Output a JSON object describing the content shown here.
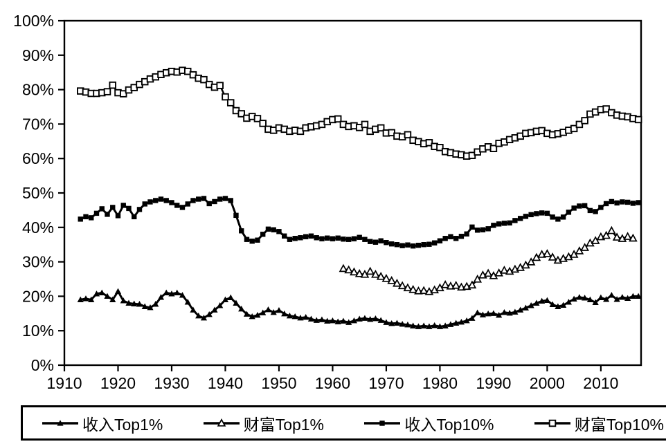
{
  "chart_data": {
    "type": "line",
    "title": "",
    "xlabel": "",
    "ylabel": "",
    "grid": "off",
    "legend_position": "bottom",
    "background_color": "#ffffff",
    "line_color": "#000000",
    "x_axis": {
      "min": 1910,
      "max": 2017.5,
      "ticks": [
        {
          "v": 1910,
          "label": "1910"
        },
        {
          "v": 1920,
          "label": "1920"
        },
        {
          "v": 1930,
          "label": "1930"
        },
        {
          "v": 1940,
          "label": "1940"
        },
        {
          "v": 1950,
          "label": "1950"
        },
        {
          "v": 1960,
          "label": "1960"
        },
        {
          "v": 1970,
          "label": "1970"
        },
        {
          "v": 1980,
          "label": "1980"
        },
        {
          "v": 1990,
          "label": "1990"
        },
        {
          "v": 2000,
          "label": "2000"
        },
        {
          "v": 2010,
          "label": "2010"
        }
      ]
    },
    "y_axis": {
      "min": 0,
      "max": 100,
      "ticks": [
        {
          "v": 0,
          "label": "0%"
        },
        {
          "v": 10,
          "label": "10%"
        },
        {
          "v": 20,
          "label": "20%"
        },
        {
          "v": 30,
          "label": "30%"
        },
        {
          "v": 40,
          "label": "40%"
        },
        {
          "v": 50,
          "label": "50%"
        },
        {
          "v": 60,
          "label": "60%"
        },
        {
          "v": 70,
          "label": "70%"
        },
        {
          "v": 80,
          "label": "80%"
        },
        {
          "v": 90,
          "label": "90%"
        },
        {
          "v": 100,
          "label": "100%"
        }
      ]
    },
    "series": [
      {
        "id": "income_top1",
        "name": "收入Top1%",
        "marker": "filled-triangle",
        "unit": "%",
        "start_year": 1913,
        "values": [
          19.0,
          19.3,
          19.0,
          20.7,
          21.0,
          20.0,
          19.0,
          21.4,
          18.7,
          18.0,
          17.8,
          17.7,
          17.0,
          16.7,
          17.7,
          19.7,
          21.0,
          20.7,
          21.0,
          20.3,
          18.3,
          16.0,
          14.3,
          13.7,
          14.7,
          16.0,
          17.3,
          19.0,
          19.6,
          18.0,
          16.3,
          14.8,
          14.1,
          14.5,
          15.2,
          16.1,
          15.3,
          15.9,
          14.9,
          14.3,
          14.1,
          13.7,
          13.9,
          13.4,
          13.0,
          13.2,
          12.8,
          12.9,
          12.6,
          12.8,
          12.4,
          12.9,
          13.4,
          13.6,
          13.3,
          13.5,
          13.0,
          12.4,
          12.1,
          12.2,
          11.9,
          11.7,
          11.4,
          11.2,
          11.4,
          11.2,
          11.5,
          11.2,
          11.4,
          11.8,
          12.2,
          12.5,
          12.9,
          13.6,
          15.2,
          14.6,
          14.9,
          15.0,
          14.5,
          15.3,
          15.1,
          15.4,
          16.0,
          16.6,
          17.3,
          18.0,
          18.6,
          18.8,
          17.6,
          17.0,
          17.4,
          18.3,
          19.2,
          19.7,
          19.5,
          19.0,
          18.2,
          19.6,
          19.1,
          20.3,
          19.1,
          19.7,
          19.4,
          20.0,
          20.0
        ]
      },
      {
        "id": "wealth_top1",
        "name": "财富Top1%",
        "marker": "open-triangle",
        "unit": "%",
        "start_year": 1962,
        "values": [
          28.0,
          27.6,
          27.0,
          26.5,
          26.3,
          27.2,
          26.3,
          25.7,
          25.1,
          24.5,
          23.7,
          23.0,
          22.4,
          21.9,
          21.5,
          21.6,
          21.3,
          21.8,
          22.4,
          23.3,
          22.9,
          23.1,
          22.6,
          22.8,
          23.2,
          24.9,
          26.1,
          26.6,
          25.9,
          26.7,
          27.5,
          27.2,
          27.8,
          28.3,
          29.0,
          29.9,
          31.2,
          32.1,
          32.3,
          31.3,
          30.4,
          30.9,
          31.4,
          32.1,
          33.1,
          34.1,
          35.4,
          36.1,
          37.2,
          37.6,
          39.0,
          37.1,
          36.7,
          37.3,
          36.8
        ]
      },
      {
        "id": "income_top10",
        "name": "收入Top10%",
        "marker": "filled-square",
        "unit": "%",
        "start_year": 1913,
        "values": [
          42.4,
          43.1,
          42.8,
          44.1,
          45.4,
          43.8,
          45.8,
          43.4,
          46.4,
          45.5,
          43.1,
          45.2,
          46.8,
          47.4,
          47.8,
          48.2,
          47.8,
          47.2,
          46.4,
          45.8,
          46.8,
          47.8,
          48.2,
          48.4,
          46.9,
          47.5,
          48.2,
          48.4,
          47.8,
          43.5,
          39.0,
          36.5,
          36.0,
          36.3,
          38.0,
          39.5,
          39.3,
          38.8,
          37.5,
          36.5,
          36.8,
          37.0,
          37.3,
          37.5,
          37.0,
          36.7,
          36.9,
          36.7,
          36.9,
          36.6,
          36.5,
          36.7,
          37.1,
          36.5,
          35.9,
          35.7,
          36.1,
          35.6,
          35.2,
          35.0,
          34.7,
          34.9,
          34.6,
          34.8,
          35.0,
          35.1,
          35.5,
          36.1,
          36.8,
          37.3,
          36.8,
          37.4,
          38.1,
          40.1,
          39.2,
          39.3,
          39.6,
          40.6,
          41.0,
          41.2,
          41.3,
          42.0,
          42.6,
          43.2,
          43.7,
          44.0,
          44.2,
          44.1,
          43.0,
          42.4,
          43.0,
          44.4,
          45.6,
          46.2,
          46.3,
          44.9,
          44.6,
          45.8,
          46.9,
          47.5,
          47.1,
          47.4,
          47.3,
          47.0,
          47.2
        ]
      },
      {
        "id": "wealth_top10",
        "name": "财富Top10%",
        "marker": "open-square",
        "unit": "%",
        "start_year": 1913,
        "values": [
          79.6,
          79.3,
          78.9,
          78.9,
          79.1,
          79.4,
          81.3,
          79.1,
          78.8,
          79.9,
          80.6,
          81.5,
          82.3,
          83.1,
          83.7,
          84.4,
          84.9,
          85.3,
          85.1,
          85.6,
          85.3,
          84.3,
          83.3,
          82.9,
          81.5,
          80.7,
          81.2,
          77.9,
          76.2,
          73.9,
          73.0,
          71.7,
          72.2,
          71.6,
          70.2,
          68.5,
          68.2,
          68.9,
          68.5,
          67.9,
          68.2,
          67.9,
          68.9,
          69.2,
          69.5,
          69.9,
          70.7,
          71.3,
          71.5,
          69.9,
          69.3,
          69.5,
          69.0,
          69.9,
          67.9,
          68.5,
          68.9,
          67.4,
          67.5,
          66.5,
          66.3,
          66.9,
          65.3,
          64.9,
          64.3,
          64.6,
          63.5,
          63.2,
          62.0,
          61.7,
          61.3,
          61.1,
          60.7,
          60.9,
          61.9,
          62.8,
          63.4,
          62.9,
          64.4,
          64.8,
          65.5,
          66.0,
          66.5,
          67.3,
          67.5,
          67.9,
          68.1,
          67.3,
          66.9,
          67.2,
          67.6,
          68.2,
          68.7,
          69.9,
          71.0,
          72.9,
          73.5,
          74.2,
          74.4,
          73.3,
          72.6,
          72.3,
          72.1,
          71.6,
          71.3
        ]
      }
    ]
  }
}
